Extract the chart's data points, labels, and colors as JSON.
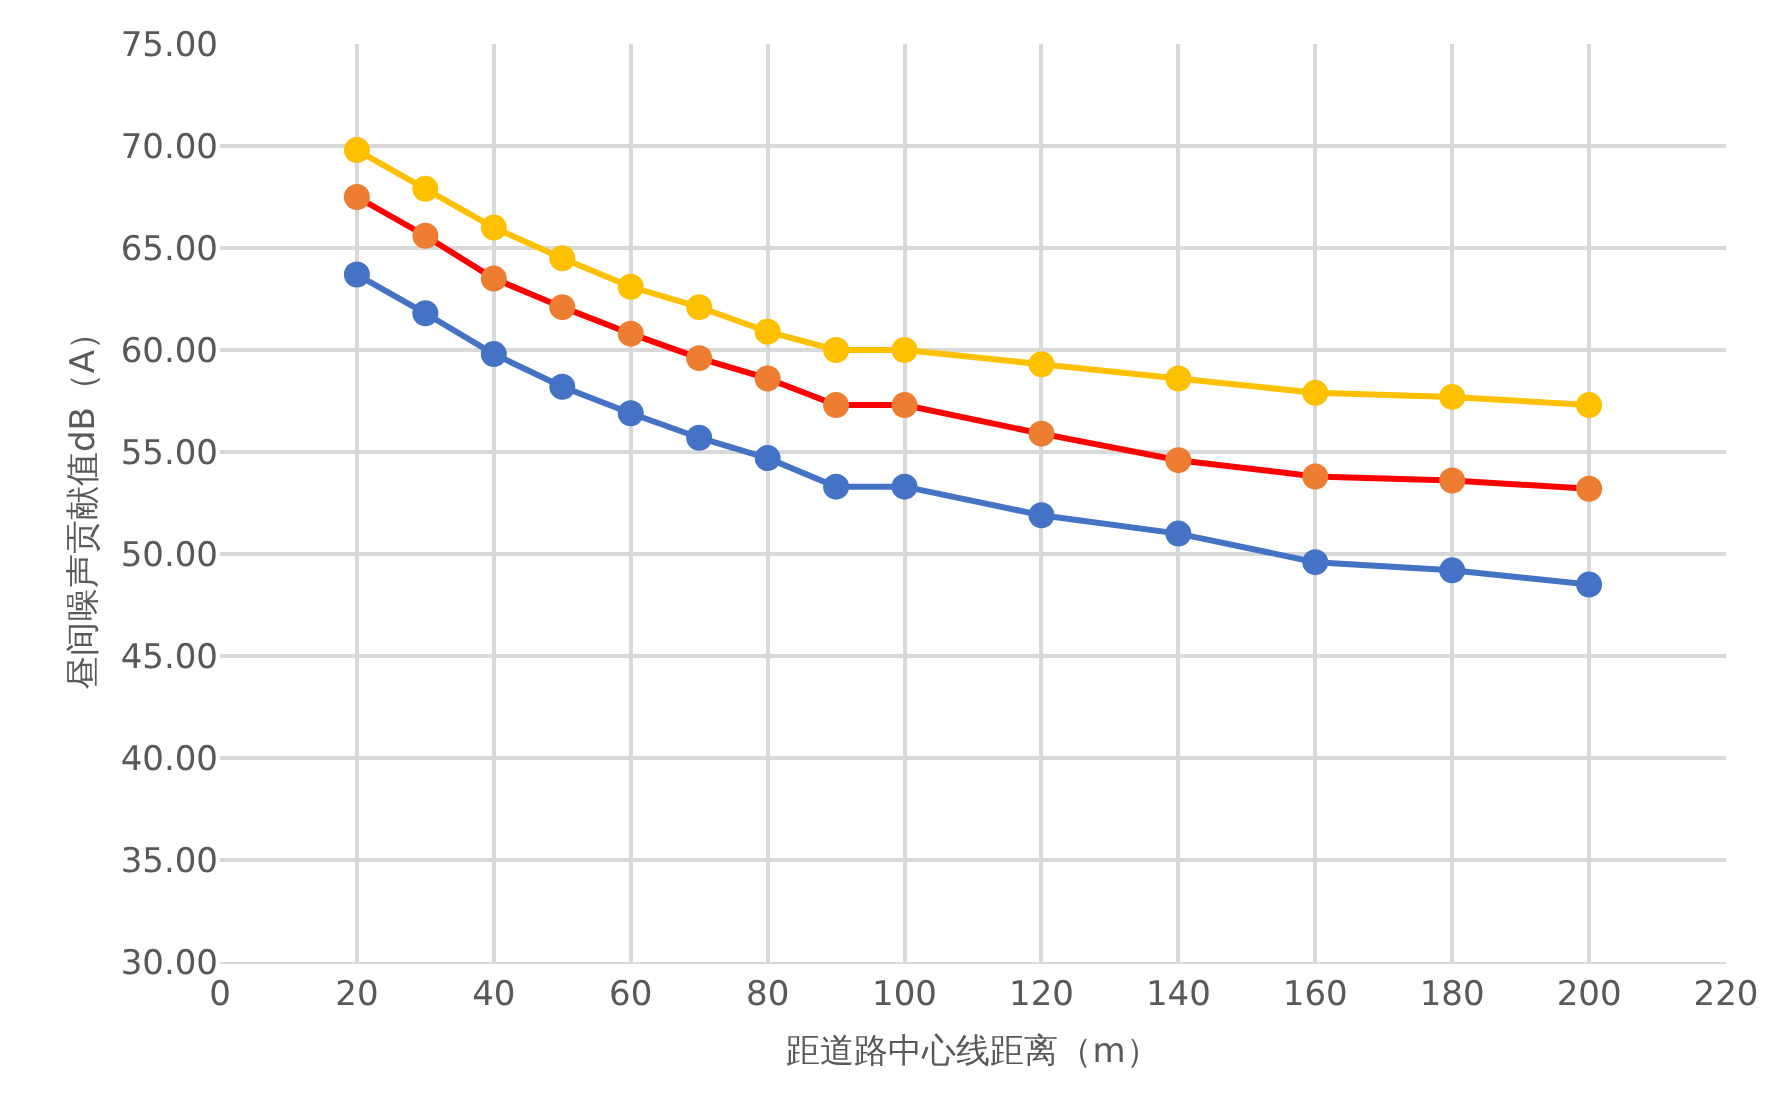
{
  "chart_data": {
    "type": "line",
    "xlabel": "距道路中心线距离（m）",
    "ylabel": "昼间噪声贡献值dB（A）",
    "x": [
      20,
      30,
      40,
      50,
      60,
      70,
      80,
      90,
      100,
      120,
      140,
      160,
      180,
      200
    ],
    "series": [
      {
        "color": "#4472c4",
        "values": [
          63.7,
          61.8,
          59.8,
          58.2,
          56.9,
          55.7,
          54.7,
          53.3,
          53.3,
          51.9,
          51.0,
          49.6,
          49.2,
          48.5
        ]
      },
      {
        "color": "#ff0000",
        "colors": [
          "#ed7d31",
          "#ed7d31",
          "#ed7d31",
          "#ed7d31",
          "#ed7d31",
          "#ed7d31",
          "#ed7d31",
          "#ed7d31",
          "#ed7d31",
          "#ed7d31",
          "#ed7d31",
          "#ed7d31",
          "#ed7d31",
          "#ed7d31"
        ],
        "values": [
          67.5,
          65.6,
          63.5,
          62.1,
          60.8,
          59.6,
          58.6,
          57.3,
          57.3,
          55.9,
          54.6,
          53.8,
          53.6,
          53.2
        ]
      },
      {
        "color": "#ffc000",
        "values": [
          69.8,
          67.9,
          66.0,
          64.5,
          63.1,
          62.1,
          60.9,
          60.0,
          60.0,
          59.3,
          58.6,
          57.9,
          57.7,
          57.3
        ]
      }
    ],
    "xlim": [
      0,
      220
    ],
    "xticks": [
      0,
      20,
      40,
      60,
      80,
      100,
      120,
      140,
      160,
      180,
      200,
      220
    ],
    "ylim": [
      30,
      75
    ],
    "yticks": [
      {
        "value": 30,
        "label": "30.00"
      },
      {
        "value": 35,
        "label": "35.00"
      },
      {
        "value": 40,
        "label": "40.00"
      },
      {
        "value": 45,
        "label": "45.00"
      },
      {
        "value": 50,
        "label": "50.00"
      },
      {
        "value": 55,
        "label": "55.00"
      },
      {
        "value": 60,
        "label": "60.00"
      },
      {
        "value": 65,
        "label": "65.00"
      },
      {
        "value": 70,
        "label": "70.00"
      },
      {
        "value": 75,
        "label": "75.00"
      }
    ],
    "grid": true,
    "marker": "circle",
    "line_style": "solid"
  }
}
